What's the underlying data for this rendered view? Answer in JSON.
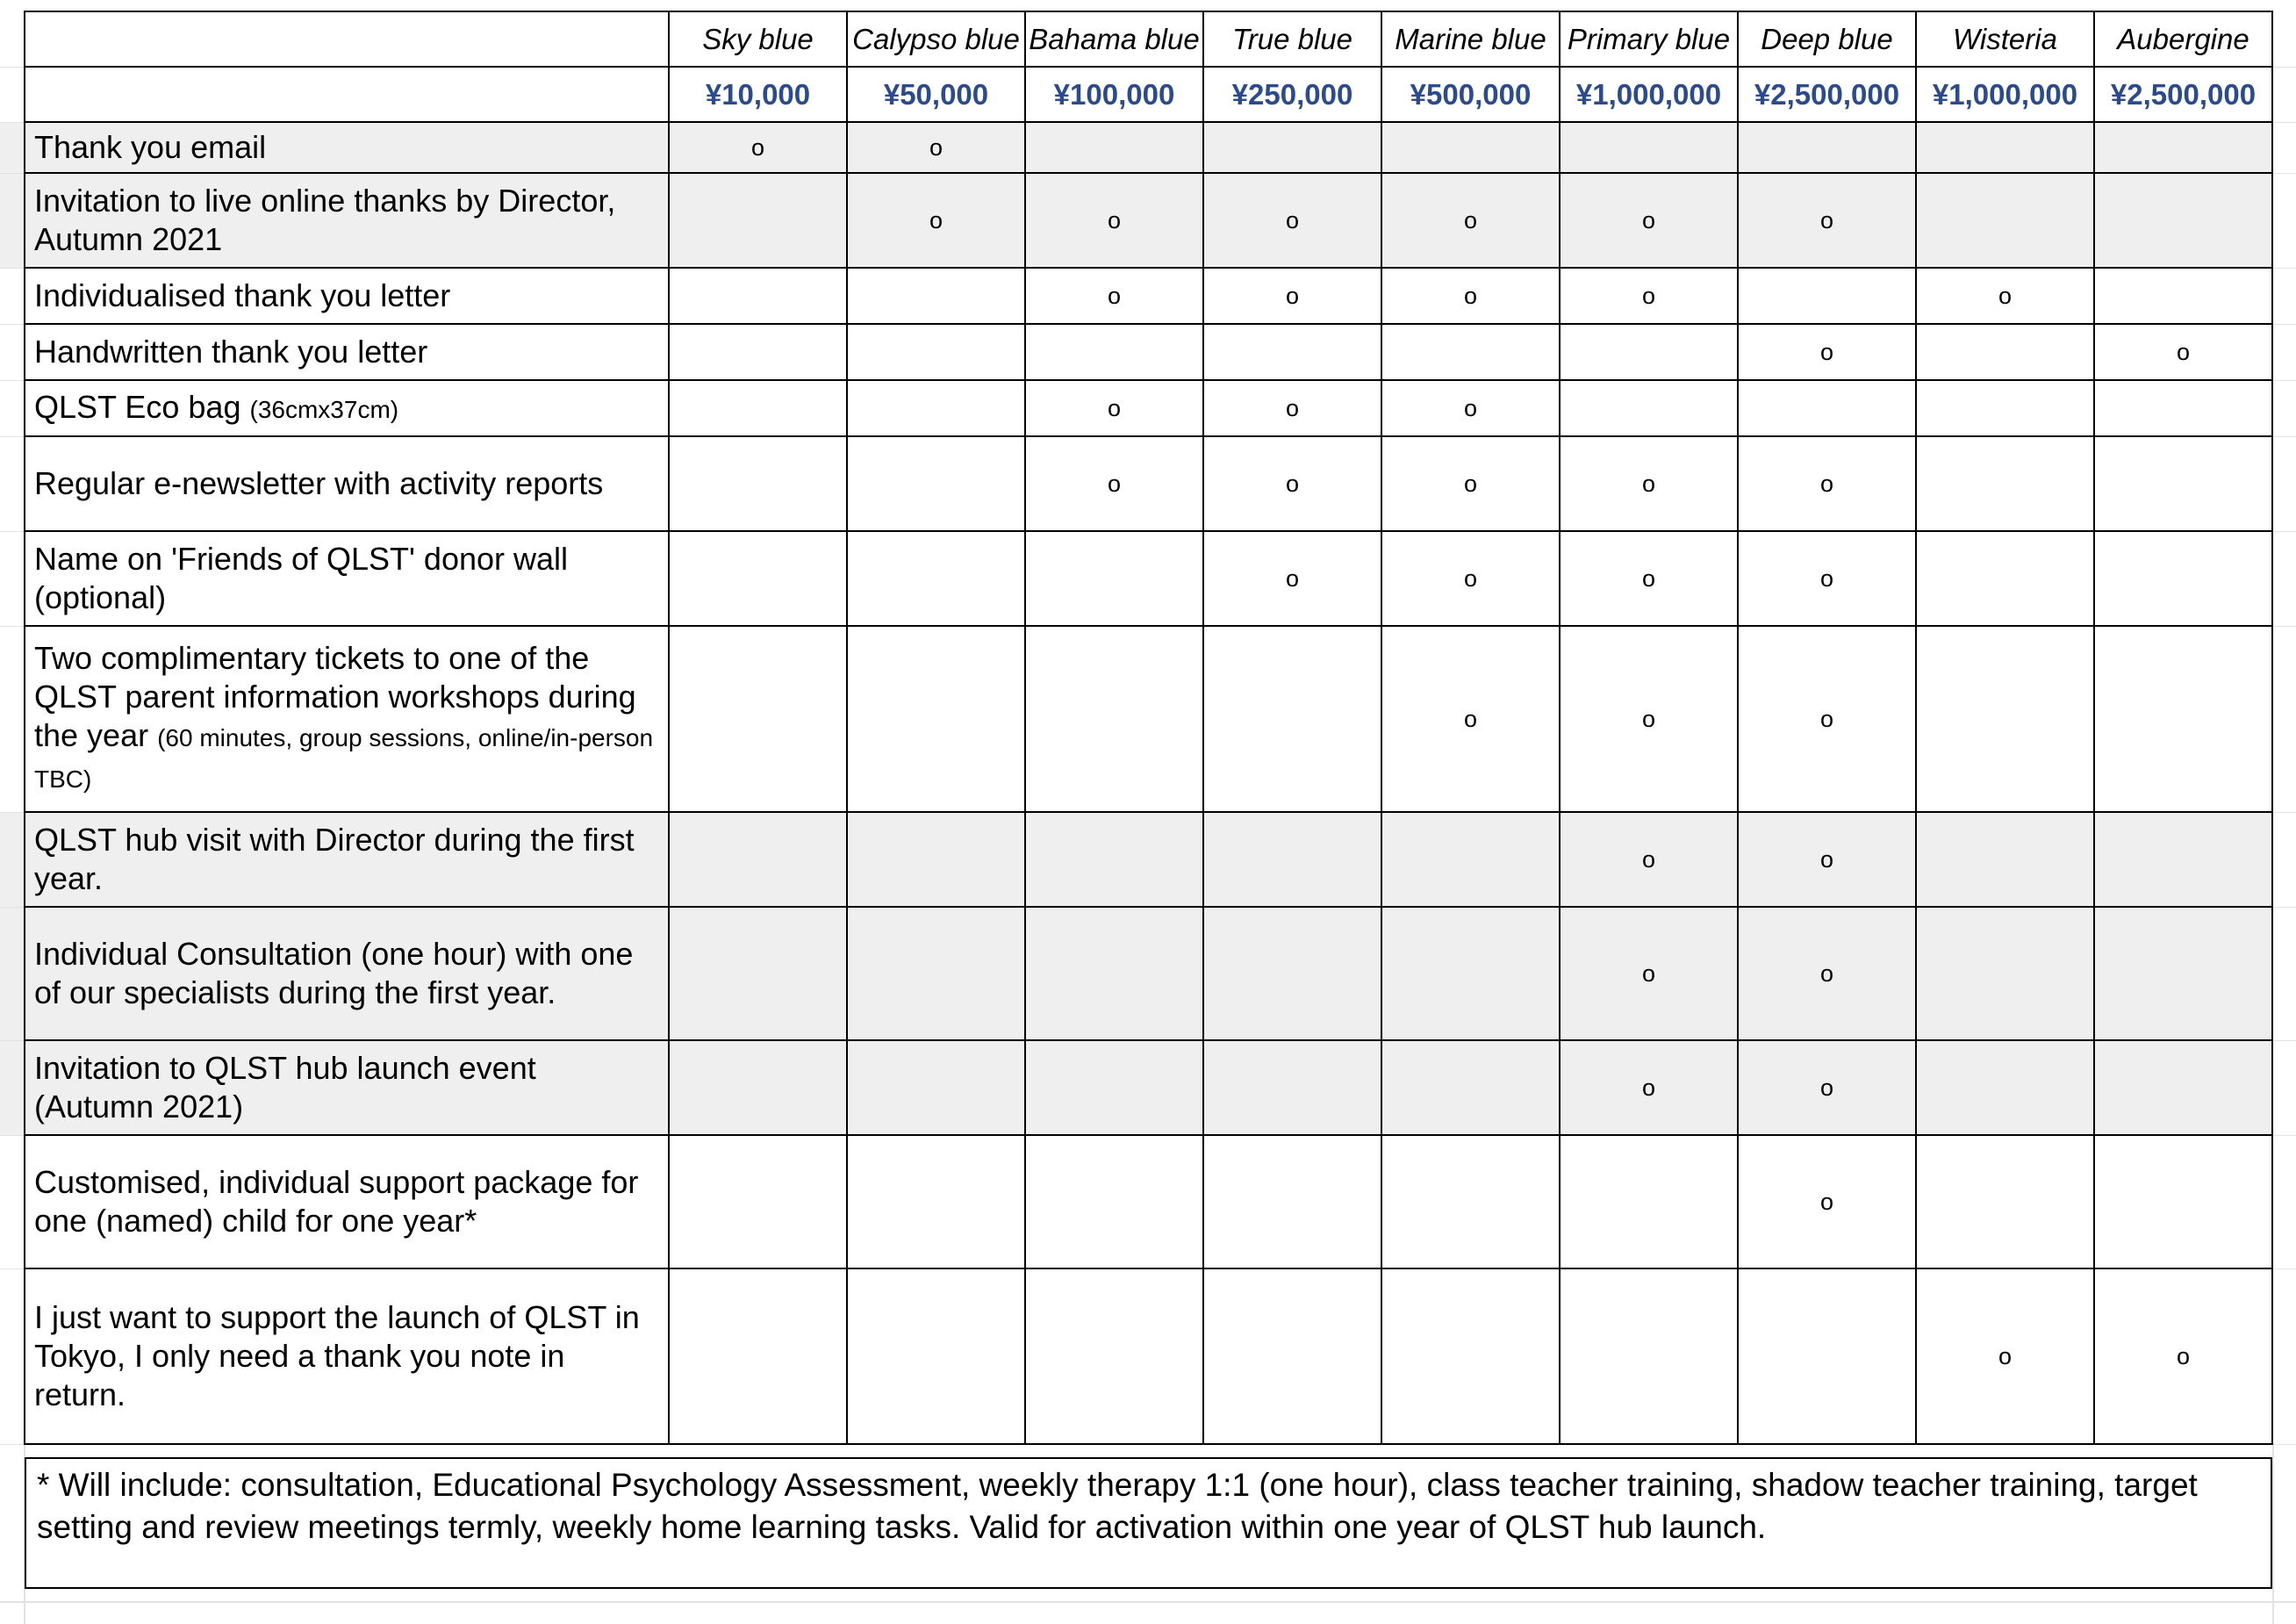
{
  "table": {
    "tiers": [
      {
        "name": "Sky blue",
        "amount": "¥10,000"
      },
      {
        "name": "Calypso blue",
        "amount": "¥50,000"
      },
      {
        "name": "Bahama blue",
        "amount": "¥100,000"
      },
      {
        "name": "True blue",
        "amount": "¥250,000"
      },
      {
        "name": "Marine blue",
        "amount": "¥500,000"
      },
      {
        "name": "Primary blue",
        "amount": "¥1,000,000"
      },
      {
        "name": "Deep blue",
        "amount": "¥2,500,000"
      },
      {
        "name": "Wisteria",
        "amount": "¥1,000,000"
      },
      {
        "name": "Aubergine",
        "amount": "¥2,500,000"
      }
    ],
    "mark_symbol": "o",
    "rows": [
      {
        "label": "Thank you email",
        "note": "",
        "shaded": true,
        "marks": [
          1,
          1,
          0,
          0,
          0,
          0,
          0,
          0,
          0
        ]
      },
      {
        "label": "Invitation to live online thanks by Director, Autumn 2021",
        "note": "",
        "shaded": true,
        "marks": [
          0,
          1,
          1,
          1,
          1,
          1,
          1,
          0,
          0
        ]
      },
      {
        "label": "Individualised thank you letter",
        "note": "",
        "shaded": false,
        "marks": [
          0,
          0,
          1,
          1,
          1,
          1,
          0,
          1,
          0
        ]
      },
      {
        "label": "Handwritten thank you letter",
        "note": "",
        "shaded": false,
        "marks": [
          0,
          0,
          0,
          0,
          0,
          0,
          1,
          0,
          1
        ]
      },
      {
        "label": "QLST Eco bag",
        "note": "(36cmx37cm)",
        "shaded": false,
        "marks": [
          0,
          0,
          1,
          1,
          1,
          0,
          0,
          0,
          0
        ]
      },
      {
        "label": "Regular e-newsletter with activity reports",
        "note": "",
        "shaded": false,
        "marks": [
          0,
          0,
          1,
          1,
          1,
          1,
          1,
          0,
          0
        ]
      },
      {
        "label": "Name on 'Friends of QLST' donor wall (optional)",
        "note": "",
        "shaded": false,
        "marks": [
          0,
          0,
          0,
          1,
          1,
          1,
          1,
          0,
          0
        ]
      },
      {
        "label": "Two complimentary tickets to one of the QLST parent information workshops during the year",
        "note": "(60 minutes, group sessions, online/in-person TBC)",
        "shaded": false,
        "marks": [
          0,
          0,
          0,
          0,
          1,
          1,
          1,
          0,
          0
        ]
      },
      {
        "label": "QLST hub visit with Director during the first year.",
        "note": "",
        "shaded": true,
        "marks": [
          0,
          0,
          0,
          0,
          0,
          1,
          1,
          0,
          0
        ]
      },
      {
        "label": "Individual Consultation (one hour) with one of our specialists during the first year.",
        "note": "",
        "shaded": true,
        "marks": [
          0,
          0,
          0,
          0,
          0,
          1,
          1,
          0,
          0
        ]
      },
      {
        "label": "Invitation to QLST hub launch event (Autumn 2021)",
        "note": "",
        "shaded": true,
        "marks": [
          0,
          0,
          0,
          0,
          0,
          1,
          1,
          0,
          0
        ]
      },
      {
        "label": "Customised, individual support package for one (named) child for one year*",
        "note": "",
        "shaded": false,
        "marks": [
          0,
          0,
          0,
          0,
          0,
          0,
          1,
          0,
          0
        ]
      },
      {
        "label": "I just want to support the launch of QLST in Tokyo, I only need a thank you note in return.",
        "note": "",
        "shaded": false,
        "marks": [
          0,
          0,
          0,
          0,
          0,
          0,
          0,
          1,
          1
        ]
      }
    ]
  },
  "footnote": "* Will include: consultation, Educational Psychology Assessment, weekly therapy 1:1 (one hour), class teacher training, shadow teacher training, target setting and review meetings termly, weekly home learning tasks. Valid for activation within one year of QLST hub launch.",
  "colors": {
    "amount_text": "#2b4b8e",
    "shaded_row": "#efefef",
    "faint_gridline": "#e2e2e2",
    "table_border": "#000000"
  }
}
